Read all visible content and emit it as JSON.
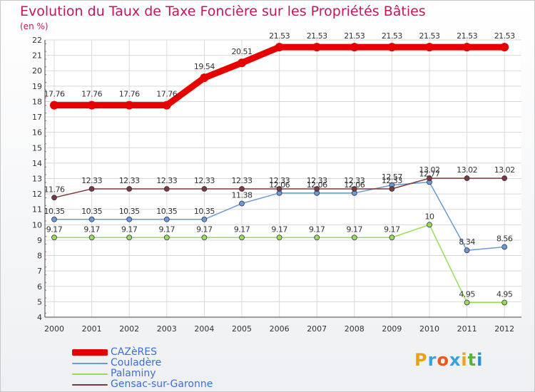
{
  "header": {
    "title": "Evolution du Taux de Taxe Foncière sur les Propriétés Bâties",
    "subtitle": "(en %)"
  },
  "logo": {
    "text": "Proxiti",
    "letter_colors": [
      "#e8a21a",
      "#3aa0d8",
      "#e85a1a",
      "#3aa0d8",
      "#f0a020",
      "#59b33c",
      "#2a8fd0"
    ]
  },
  "chart_data": {
    "type": "line",
    "title": "Evolution du Taux de Taxe Foncière sur les Propriétés Bâties",
    "ylabel": "(en %)",
    "xlabel": "",
    "ylim": [
      4,
      22
    ],
    "y_ticks": [
      4,
      5,
      6,
      7,
      8,
      9,
      10,
      11,
      12,
      13,
      14,
      15,
      16,
      17,
      18,
      19,
      20,
      21,
      22
    ],
    "categories": [
      "2000",
      "2001",
      "2002",
      "2003",
      "2004",
      "2005",
      "2006",
      "2007",
      "2008",
      "2009",
      "2010",
      "2011",
      "2012"
    ],
    "grid": true,
    "series": [
      {
        "name": "CAZèRES",
        "color": "#e60000",
        "values": [
          17.76,
          17.76,
          17.76,
          17.76,
          19.54,
          20.51,
          21.53,
          21.53,
          21.53,
          21.53,
          21.53,
          21.53,
          21.53
        ],
        "labels": [
          "17.76",
          "17.76",
          "17.76",
          "17.76",
          "19.54",
          "20.51",
          "21.53",
          "21.53",
          "21.53",
          "21.53",
          "21.53",
          "21.53",
          "21.53"
        ]
      },
      {
        "name": "Couladère",
        "color": "#6a9bd1",
        "values": [
          10.35,
          10.35,
          10.35,
          10.35,
          10.35,
          11.38,
          12.06,
          12.06,
          12.06,
          12.57,
          12.77,
          8.34,
          8.56
        ],
        "labels": [
          "10.35",
          "10.35",
          "10.35",
          "10.35",
          "10.35",
          "11.38",
          "12.06",
          "12.06",
          "12.06",
          "12.57",
          "12.77",
          "8.34",
          "8.56"
        ]
      },
      {
        "name": "Palaminy",
        "color": "#99dd55",
        "values": [
          9.17,
          9.17,
          9.17,
          9.17,
          9.17,
          9.17,
          9.17,
          9.17,
          9.17,
          9.17,
          10,
          4.95,
          4.95
        ],
        "labels": [
          "9.17",
          "9.17",
          "9.17",
          "9.17",
          "9.17",
          "9.17",
          "9.17",
          "9.17",
          "9.17",
          "9.17",
          "10",
          "4.95",
          "4.95"
        ]
      },
      {
        "name": "Gensac-sur-Garonne",
        "color": "#7a3a3a",
        "values": [
          11.76,
          12.33,
          12.33,
          12.33,
          12.33,
          12.33,
          12.33,
          12.33,
          12.33,
          12.33,
          13.02,
          13.02,
          13.02
        ],
        "labels": [
          "11.76",
          "12.33",
          "12.33",
          "12.33",
          "12.33",
          "12.33",
          "12.33",
          "12.33",
          "12.33",
          "12.33",
          "13.02",
          "13.02",
          "13.02"
        ]
      }
    ]
  }
}
